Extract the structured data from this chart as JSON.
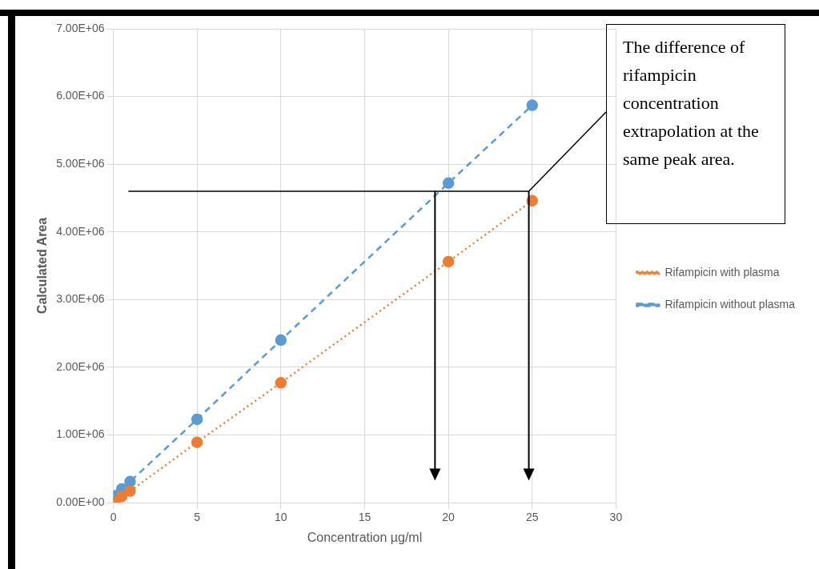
{
  "chart_data": {
    "type": "line",
    "xlabel": "Concentration µg/ml",
    "ylabel": "Calculated Area",
    "xlim": [
      0,
      30
    ],
    "xticks": [
      0,
      5,
      10,
      15,
      20,
      25,
      30
    ],
    "ylim": [
      0,
      7000000
    ],
    "yticks": [
      {
        "value": 0,
        "label": "0.00E+00"
      },
      {
        "value": 1000000,
        "label": "1.00E+06"
      },
      {
        "value": 2000000,
        "label": "2.00E+06"
      },
      {
        "value": 3000000,
        "label": "3.00E+06"
      },
      {
        "value": 4000000,
        "label": "4.00E+06"
      },
      {
        "value": 5000000,
        "label": "5.00E+06"
      },
      {
        "value": 6000000,
        "label": "6.00E+06"
      },
      {
        "value": 7000000,
        "label": "7.00E+06"
      }
    ],
    "series": [
      {
        "name": "Rifampicin without plasma",
        "color": "#5b9bd5",
        "line_style": "dashed",
        "x": [
          0.1,
          0.5,
          1,
          5,
          10,
          20,
          25
        ],
        "values": [
          100000,
          200000,
          310000,
          1230000,
          2400000,
          4720000,
          5870000
        ]
      },
      {
        "name": "Rifampicin with plasma",
        "color": "#ed7d31",
        "line_style": "dotted",
        "x": [
          0.1,
          0.5,
          1,
          5,
          10,
          20,
          25
        ],
        "values": [
          0,
          90000,
          170000,
          890000,
          1770000,
          3560000,
          4460000
        ]
      }
    ],
    "marker": "circle",
    "grid": true,
    "legend": "right",
    "ref_lines": [
      {
        "axis": "y",
        "value": 4600000,
        "color": "#000000"
      }
    ],
    "annotations": [
      {
        "text": "The difference of rifampicin concentration extrapolation at the same peak area.",
        "x": 24.8,
        "y": 4600000
      }
    ]
  }
}
